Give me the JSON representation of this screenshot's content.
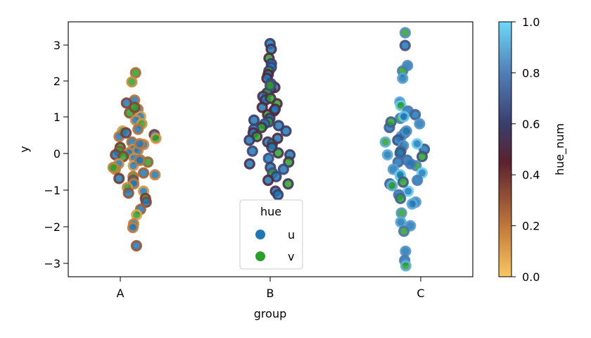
{
  "chart_data": {
    "type": "scatter",
    "xlabel": "group",
    "ylabel": "y",
    "categories": [
      "A",
      "B",
      "C"
    ],
    "ylim": [
      -3.35,
      3.65
    ],
    "yticks": [
      -3,
      -2,
      -1,
      0,
      1,
      2,
      3
    ],
    "grid": false,
    "legend": {
      "title": "hue",
      "placement": "lower-center",
      "entries": [
        {
          "label": "u",
          "color": "#1f77b4"
        },
        {
          "label": "v",
          "color": "#2ca02c"
        }
      ]
    },
    "colorbar": {
      "label": "hue_num",
      "range": [
        0,
        1
      ],
      "ticks": [
        "0.0",
        "0.2",
        "0.4",
        "0.6",
        "0.8",
        "1.0"
      ],
      "colors_low_to_high": [
        "#f9c762",
        "#c0773a",
        "#5a2230",
        "#3a3e6d",
        "#4f7fb8",
        "#6dd8f7"
      ]
    },
    "hue_range_by_group": {
      "A": [
        0.08,
        0.35
      ],
      "B": [
        0.4,
        0.65
      ],
      "C": [
        0.65,
        1.0
      ]
    },
    "series": [
      {
        "group": "A",
        "points": [
          {
            "y": 2.25,
            "hue": "v"
          },
          {
            "y": 2.0,
            "hue": "v"
          },
          {
            "y": 1.5,
            "hue": "u"
          },
          {
            "y": 1.42,
            "hue": "u"
          },
          {
            "y": 1.25,
            "hue": "u"
          },
          {
            "y": 1.15,
            "hue": "v"
          },
          {
            "y": 1.05,
            "hue": "u"
          },
          {
            "y": 0.95,
            "hue": "u"
          },
          {
            "y": 0.85,
            "hue": "v"
          },
          {
            "y": 0.7,
            "hue": "u"
          },
          {
            "y": 0.65,
            "hue": "v"
          },
          {
            "y": 0.55,
            "hue": "u"
          },
          {
            "y": 0.5,
            "hue": "u"
          },
          {
            "y": 0.45,
            "hue": "v"
          },
          {
            "y": 0.35,
            "hue": "u"
          },
          {
            "y": 0.28,
            "hue": "u"
          },
          {
            "y": 0.2,
            "hue": "v"
          },
          {
            "y": 0.15,
            "hue": "u"
          },
          {
            "y": 0.12,
            "hue": "u"
          },
          {
            "y": 0.1,
            "hue": "v"
          },
          {
            "y": 0.05,
            "hue": "u"
          },
          {
            "y": 0.0,
            "hue": "u"
          },
          {
            "y": -0.05,
            "hue": "v"
          },
          {
            "y": -0.1,
            "hue": "u"
          },
          {
            "y": -0.15,
            "hue": "u"
          },
          {
            "y": -0.2,
            "hue": "v"
          },
          {
            "y": -0.25,
            "hue": "u"
          },
          {
            "y": -0.3,
            "hue": "u"
          },
          {
            "y": -0.4,
            "hue": "v"
          },
          {
            "y": -0.5,
            "hue": "u"
          },
          {
            "y": -0.55,
            "hue": "u"
          },
          {
            "y": -0.6,
            "hue": "v"
          },
          {
            "y": -0.7,
            "hue": "u"
          },
          {
            "y": -0.8,
            "hue": "u"
          },
          {
            "y": -0.9,
            "hue": "v"
          },
          {
            "y": -1.0,
            "hue": "u"
          },
          {
            "y": -1.05,
            "hue": "u"
          },
          {
            "y": -1.2,
            "hue": "v"
          },
          {
            "y": -1.3,
            "hue": "u"
          },
          {
            "y": -1.5,
            "hue": "u"
          },
          {
            "y": -1.65,
            "hue": "v"
          },
          {
            "y": -1.9,
            "hue": "u"
          },
          {
            "y": -2.0,
            "hue": "u"
          },
          {
            "y": -2.5,
            "hue": "u"
          },
          {
            "y": 0.6,
            "hue": "u"
          },
          {
            "y": -0.35,
            "hue": "v"
          },
          {
            "y": 0.3,
            "hue": "u"
          },
          {
            "y": -0.65,
            "hue": "u"
          },
          {
            "y": 1.3,
            "hue": "v"
          },
          {
            "y": -0.15,
            "hue": "u"
          }
        ]
      },
      {
        "group": "B",
        "points": [
          {
            "y": 3.05,
            "hue": "u"
          },
          {
            "y": 2.9,
            "hue": "u"
          },
          {
            "y": 2.65,
            "hue": "v"
          },
          {
            "y": 2.5,
            "hue": "u"
          },
          {
            "y": 2.4,
            "hue": "u"
          },
          {
            "y": 2.3,
            "hue": "v"
          },
          {
            "y": 2.2,
            "hue": "u"
          },
          {
            "y": 2.1,
            "hue": "u"
          },
          {
            "y": 1.95,
            "hue": "v"
          },
          {
            "y": 1.85,
            "hue": "u"
          },
          {
            "y": 1.8,
            "hue": "u"
          },
          {
            "y": 1.7,
            "hue": "v"
          },
          {
            "y": 1.6,
            "hue": "u"
          },
          {
            "y": 1.5,
            "hue": "u"
          },
          {
            "y": 1.4,
            "hue": "v"
          },
          {
            "y": 1.3,
            "hue": "u"
          },
          {
            "y": 1.2,
            "hue": "u"
          },
          {
            "y": 1.1,
            "hue": "v"
          },
          {
            "y": 1.0,
            "hue": "u"
          },
          {
            "y": 0.95,
            "hue": "u"
          },
          {
            "y": 0.9,
            "hue": "v"
          },
          {
            "y": 0.85,
            "hue": "u"
          },
          {
            "y": 0.8,
            "hue": "u"
          },
          {
            "y": 0.75,
            "hue": "v"
          },
          {
            "y": 0.7,
            "hue": "u"
          },
          {
            "y": 0.6,
            "hue": "u"
          },
          {
            "y": 0.5,
            "hue": "v"
          },
          {
            "y": 0.4,
            "hue": "u"
          },
          {
            "y": 0.35,
            "hue": "u"
          },
          {
            "y": 0.3,
            "hue": "v"
          },
          {
            "y": 0.2,
            "hue": "u"
          },
          {
            "y": 0.1,
            "hue": "u"
          },
          {
            "y": 0.05,
            "hue": "v"
          },
          {
            "y": 0.0,
            "hue": "u"
          },
          {
            "y": -0.1,
            "hue": "u"
          },
          {
            "y": -0.2,
            "hue": "v"
          },
          {
            "y": -0.35,
            "hue": "u"
          },
          {
            "y": -0.4,
            "hue": "u"
          },
          {
            "y": -0.5,
            "hue": "v"
          },
          {
            "y": -0.6,
            "hue": "u"
          },
          {
            "y": -0.7,
            "hue": "u"
          },
          {
            "y": -0.8,
            "hue": "v"
          },
          {
            "y": -1.0,
            "hue": "u"
          },
          {
            "y": -1.1,
            "hue": "u"
          },
          {
            "y": 1.55,
            "hue": "v"
          },
          {
            "y": 0.65,
            "hue": "u"
          },
          {
            "y": -0.25,
            "hue": "u"
          },
          {
            "y": 1.9,
            "hue": "v"
          },
          {
            "y": 0.45,
            "hue": "u"
          },
          {
            "y": 1.25,
            "hue": "u"
          }
        ]
      },
      {
        "group": "C",
        "points": [
          {
            "y": 3.35,
            "hue": "v"
          },
          {
            "y": 3.0,
            "hue": "u"
          },
          {
            "y": 2.45,
            "hue": "u"
          },
          {
            "y": 2.3,
            "hue": "v"
          },
          {
            "y": 2.1,
            "hue": "u"
          },
          {
            "y": 1.45,
            "hue": "u"
          },
          {
            "y": 1.35,
            "hue": "v"
          },
          {
            "y": 1.2,
            "hue": "u"
          },
          {
            "y": 1.1,
            "hue": "u"
          },
          {
            "y": 1.0,
            "hue": "v"
          },
          {
            "y": 0.85,
            "hue": "u"
          },
          {
            "y": 0.75,
            "hue": "u"
          },
          {
            "y": 0.6,
            "hue": "v"
          },
          {
            "y": 0.5,
            "hue": "u"
          },
          {
            "y": 0.4,
            "hue": "u"
          },
          {
            "y": 0.35,
            "hue": "v"
          },
          {
            "y": 0.25,
            "hue": "u"
          },
          {
            "y": 0.15,
            "hue": "u"
          },
          {
            "y": 0.1,
            "hue": "v"
          },
          {
            "y": 0.05,
            "hue": "u"
          },
          {
            "y": 0.0,
            "hue": "u"
          },
          {
            "y": -0.05,
            "hue": "v"
          },
          {
            "y": -0.15,
            "hue": "u"
          },
          {
            "y": -0.2,
            "hue": "u"
          },
          {
            "y": -0.3,
            "hue": "v"
          },
          {
            "y": -0.4,
            "hue": "u"
          },
          {
            "y": -0.5,
            "hue": "u"
          },
          {
            "y": -0.6,
            "hue": "v"
          },
          {
            "y": -0.7,
            "hue": "u"
          },
          {
            "y": -0.8,
            "hue": "u"
          },
          {
            "y": -0.85,
            "hue": "v"
          },
          {
            "y": -1.0,
            "hue": "u"
          },
          {
            "y": -1.1,
            "hue": "u"
          },
          {
            "y": -1.2,
            "hue": "v"
          },
          {
            "y": -1.3,
            "hue": "u"
          },
          {
            "y": -1.35,
            "hue": "u"
          },
          {
            "y": -1.6,
            "hue": "v"
          },
          {
            "y": -1.85,
            "hue": "u"
          },
          {
            "y": -1.95,
            "hue": "u"
          },
          {
            "y": -2.1,
            "hue": "v"
          },
          {
            "y": -2.65,
            "hue": "u"
          },
          {
            "y": -2.9,
            "hue": "u"
          },
          {
            "y": -3.05,
            "hue": "v"
          },
          {
            "y": 0.65,
            "hue": "u"
          },
          {
            "y": -0.25,
            "hue": "u"
          },
          {
            "y": 0.9,
            "hue": "v"
          },
          {
            "y": -0.55,
            "hue": "u"
          },
          {
            "y": 0.3,
            "hue": "u"
          },
          {
            "y": 1.05,
            "hue": "u"
          },
          {
            "y": -0.75,
            "hue": "v"
          }
        ]
      }
    ]
  }
}
